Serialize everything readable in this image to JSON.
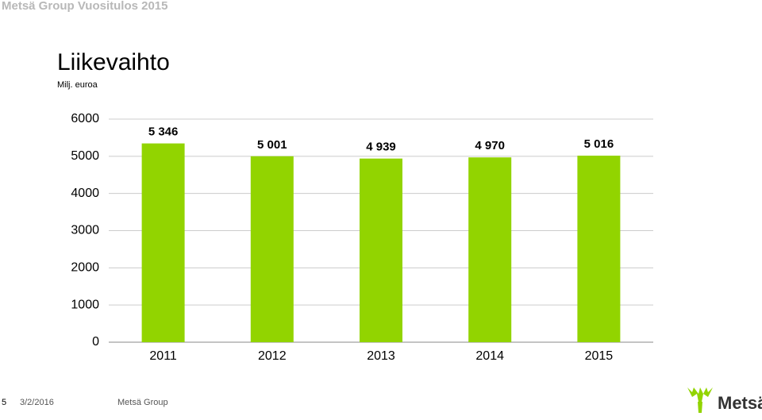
{
  "header": {
    "title": "Metsä Group Vuositulos 2015"
  },
  "chart_data": {
    "type": "bar",
    "title": "Liikevaihto",
    "subtitle": "Milj. euroa",
    "categories": [
      "2011",
      "2012",
      "2013",
      "2014",
      "2015"
    ],
    "values": [
      5346,
      5001,
      4939,
      4970,
      5016
    ],
    "value_labels": [
      "5 346",
      "5 001",
      "4 939",
      "4 970",
      "5 016"
    ],
    "color": "#92d400",
    "ylim": [
      0,
      6000
    ],
    "yticks": [
      0,
      1000,
      2000,
      3000,
      4000,
      5000,
      6000
    ],
    "grid": true
  },
  "footer": {
    "page": "5",
    "date": "3/2/2016",
    "company": "Metsä Group",
    "logo": "Metsä"
  }
}
